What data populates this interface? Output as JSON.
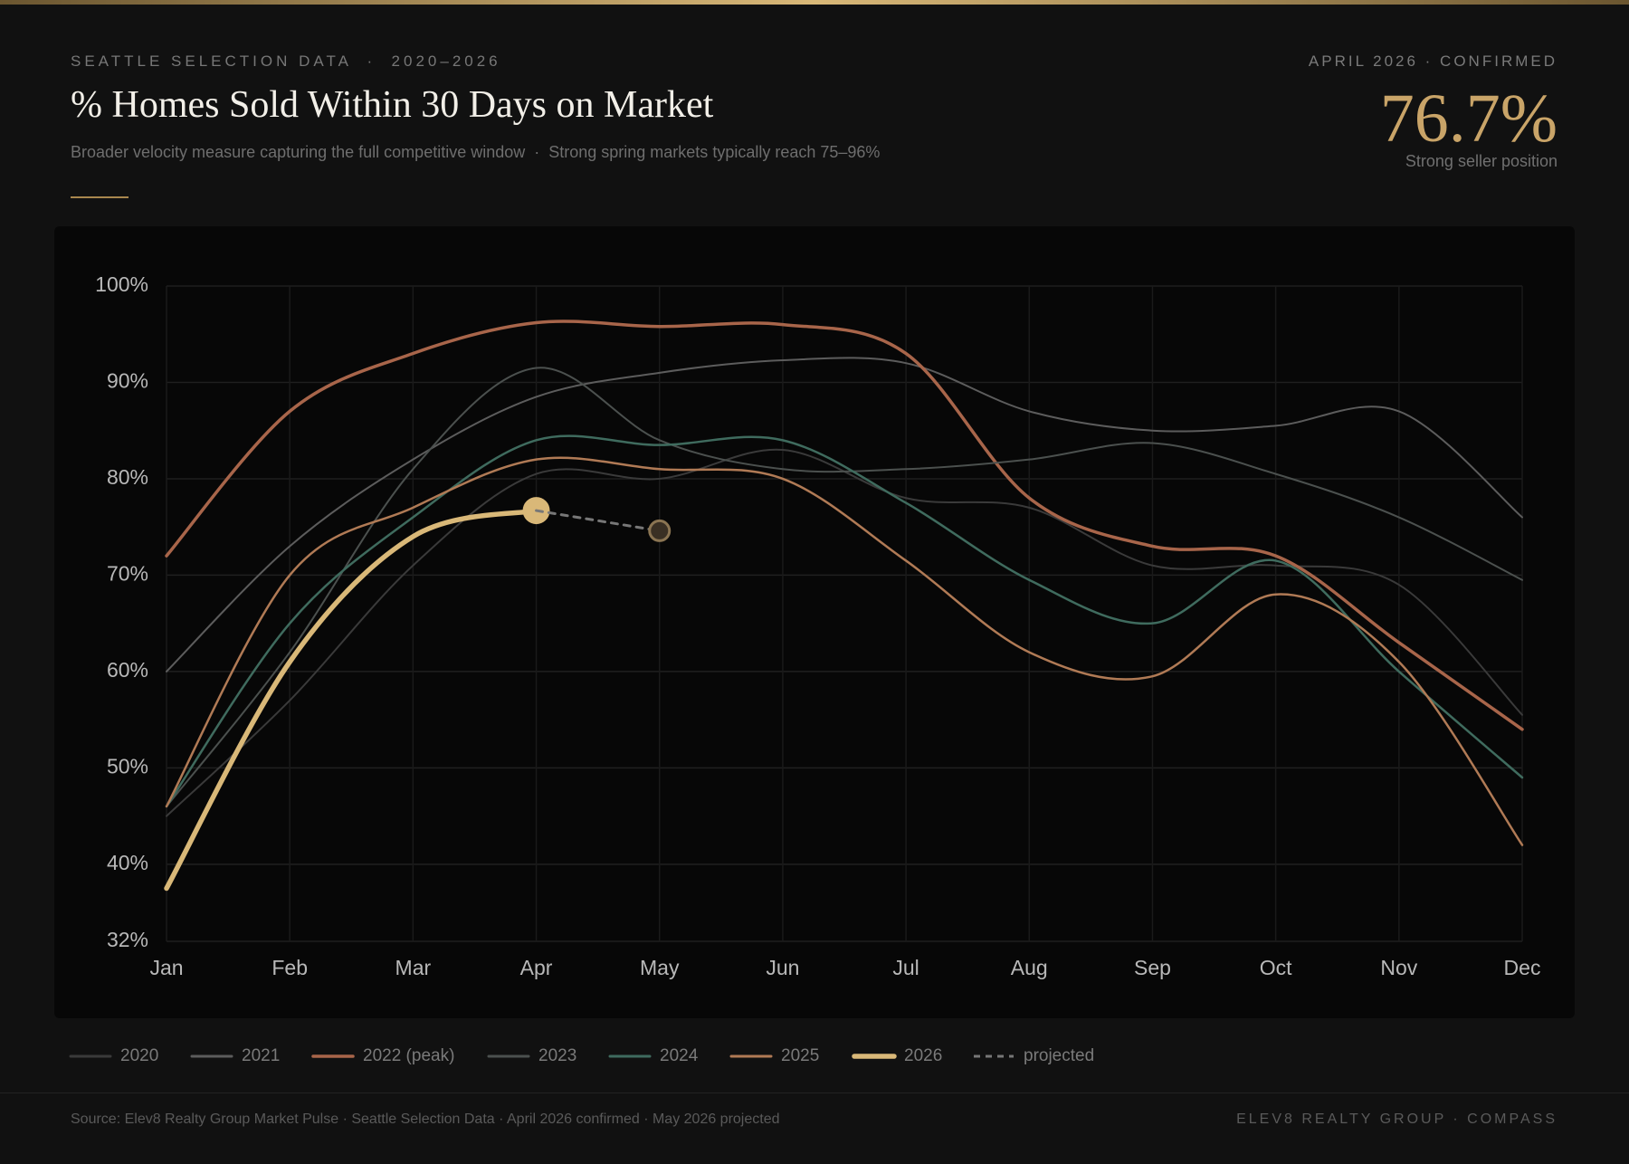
{
  "header": {
    "eyebrow": "SEATTLE SELECTION DATA  ·  2020–2026",
    "title": "% Homes Sold Within 30 Days on Market",
    "subtitle": "Broader velocity measure capturing the full competitive window  ·  Strong spring markets typically reach 75–96%",
    "kpi_label": "APRIL 2026 · CONFIRMED",
    "kpi_value": "76.7%",
    "kpi_caption": "Strong seller position"
  },
  "chart_data": {
    "type": "line",
    "categories": [
      "Jan",
      "Feb",
      "Mar",
      "Apr",
      "May",
      "Jun",
      "Jul",
      "Aug",
      "Sep",
      "Oct",
      "Nov",
      "Dec"
    ],
    "ylim": [
      32,
      100
    ],
    "yticks": [
      {
        "value": 32,
        "label": "32%"
      },
      {
        "value": 40,
        "label": "40%"
      },
      {
        "value": 50,
        "label": "50%"
      },
      {
        "value": 60,
        "label": "60%"
      },
      {
        "value": 70,
        "label": "70%"
      },
      {
        "value": 80,
        "label": "80%"
      },
      {
        "value": 90,
        "label": "90%"
      },
      {
        "value": 100,
        "label": "100%"
      }
    ],
    "grid": true,
    "series": [
      {
        "name": "2020",
        "color": "#3a3a3a",
        "width": 2,
        "values": [
          45,
          57,
          71,
          80.5,
          80,
          83,
          78,
          77,
          71,
          71,
          69,
          55.5
        ]
      },
      {
        "name": "2021",
        "color": "#5c5c5c",
        "width": 2,
        "values": [
          60,
          73,
          82,
          88.5,
          91,
          92.3,
          92,
          87,
          85,
          85.5,
          87,
          76
        ]
      },
      {
        "name": "2022 (peak)",
        "color": "#a8654a",
        "width": 3.5,
        "values": [
          72,
          87,
          93,
          96.2,
          95.8,
          96,
          93,
          78,
          73,
          72,
          63,
          54
        ]
      },
      {
        "name": "2023",
        "color": "#4b504e",
        "width": 2,
        "values": [
          46,
          62,
          81,
          91.5,
          84,
          81,
          81,
          82,
          83.7,
          80.5,
          76,
          69.5
        ]
      },
      {
        "name": "2024",
        "color": "#3f6b5e",
        "width": 2.5,
        "values": [
          46,
          65,
          76,
          84,
          83.5,
          84,
          77.5,
          69.5,
          65,
          71.5,
          60,
          49
        ]
      },
      {
        "name": "2025",
        "color": "#b07a55",
        "width": 2.5,
        "values": [
          46,
          70,
          77,
          82,
          81,
          80,
          71.5,
          62,
          59.5,
          68,
          61,
          42
        ]
      },
      {
        "name": "2026",
        "color": "#d9b878",
        "width": 5.5,
        "marker": true,
        "values": [
          37.5,
          61,
          74,
          76.7,
          null,
          null,
          null,
          null,
          null,
          null,
          null,
          null
        ]
      },
      {
        "name": "projected",
        "color": "#777777",
        "width": 3,
        "dashed": true,
        "marker": true,
        "values": [
          null,
          null,
          null,
          76.7,
          74.6,
          null,
          null,
          null,
          null,
          null,
          null,
          null
        ]
      }
    ]
  },
  "footer": {
    "source": "Source: Elev8 Realty Group Market Pulse · Seattle Selection Data · April 2026 confirmed · May 2026 projected",
    "brand": "ELEV8 REALTY GROUP · COMPASS"
  }
}
